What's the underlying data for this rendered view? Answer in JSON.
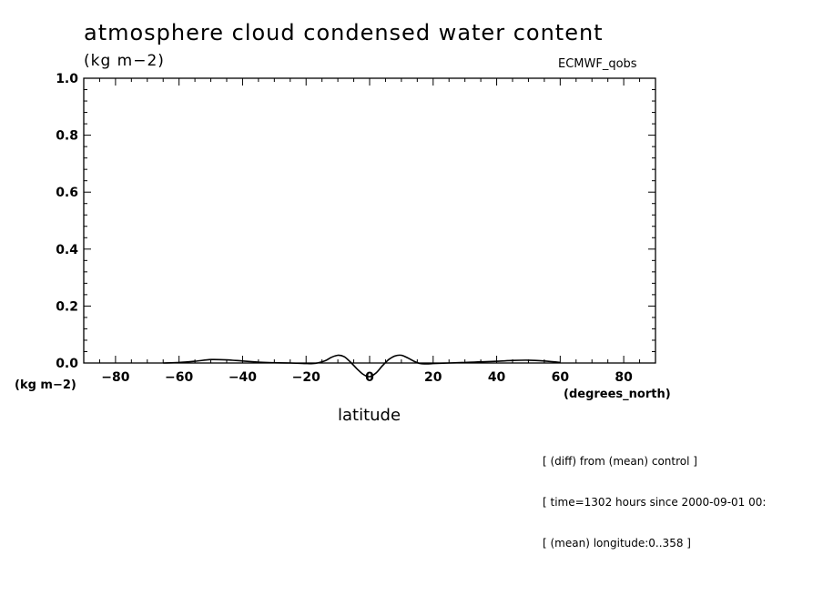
{
  "chart_data": {
    "type": "line",
    "title": "atmosphere cloud condensed water content",
    "units_top": "(kg m−2)",
    "model_label": "ECMWF_qobs",
    "ylabel": "(kg m−2)",
    "xunit": "(degrees_north)",
    "xlabel": "latitude",
    "xlim": [
      -90,
      90
    ],
    "ylim": [
      0.0,
      1.0
    ],
    "xticks": [
      -80,
      -60,
      -40,
      -20,
      0,
      20,
      40,
      60,
      80
    ],
    "xtick_labels": [
      "−80",
      "−60",
      "−40",
      "−20",
      "0",
      "20",
      "40",
      "60",
      "80"
    ],
    "yticks": [
      0.0,
      0.2,
      0.4,
      0.6,
      0.8,
      1.0
    ],
    "ytick_labels": [
      "0.0",
      "0.2",
      "0.4",
      "0.6",
      "0.8",
      "1.0"
    ],
    "grid": false,
    "line_color": "#000000",
    "series": [
      {
        "x": [
          -65,
          -60,
          -55,
          -50,
          -45,
          -40,
          -35,
          -30,
          -25,
          -20,
          -17,
          -14,
          -12,
          -10,
          -8,
          -6,
          -4,
          -2,
          0,
          2,
          4,
          6,
          8,
          10,
          12,
          14,
          16,
          18,
          20,
          25,
          30,
          35,
          40,
          45,
          50,
          55,
          60
        ],
        "y": [
          0.0,
          0.002,
          0.006,
          0.012,
          0.011,
          0.007,
          0.003,
          0.001,
          0.0,
          -0.002,
          -0.001,
          0.008,
          0.02,
          0.027,
          0.022,
          0.003,
          -0.02,
          -0.04,
          -0.048,
          -0.035,
          -0.01,
          0.012,
          0.025,
          0.027,
          0.018,
          0.006,
          -0.002,
          -0.003,
          -0.002,
          0.0,
          0.002,
          0.004,
          0.006,
          0.009,
          0.01,
          0.007,
          0.002
        ]
      }
    ]
  },
  "notes": [
    "[ (diff) from (mean) control ]",
    "[ time=1302 hours since 2000-09-01 00:",
    "[ (mean) longitude:0..358 ]"
  ]
}
